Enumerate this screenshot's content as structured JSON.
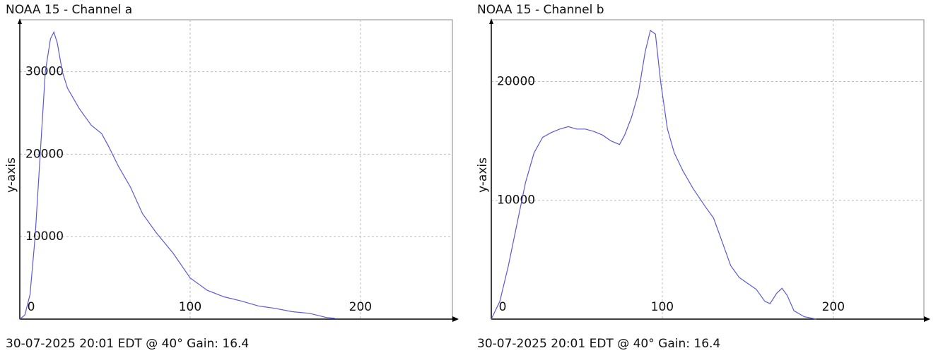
{
  "chart_data": [
    {
      "type": "line",
      "title": "NOAA 15 - Channel a",
      "ylabel": "y-axis",
      "footer": "30-07-2025 20:01 EDT @ 40° Gain: 16.4",
      "xlim": [
        0,
        254
      ],
      "xticks": [
        0,
        100,
        200
      ],
      "ylim": [
        0,
        36300
      ],
      "yticks": [
        10000,
        20000,
        30000
      ],
      "grid": true,
      "series": [
        {
          "color": "#5a5ad6",
          "x": [
            0,
            3,
            6,
            9,
            12,
            15,
            18,
            20,
            22,
            25,
            28,
            35,
            42,
            48,
            52,
            58,
            65,
            72,
            80,
            90,
            100,
            110,
            120,
            130,
            140,
            150,
            160,
            170,
            180,
            185
          ],
          "values": [
            0,
            500,
            3000,
            10000,
            20000,
            30000,
            34000,
            34800,
            33500,
            30000,
            28000,
            25500,
            23500,
            22500,
            21000,
            18500,
            16000,
            12800,
            10500,
            8000,
            5000,
            3500,
            2700,
            2200,
            1600,
            1300,
            900,
            700,
            200,
            100
          ]
        }
      ]
    },
    {
      "type": "line",
      "title": "NOAA 15 - Channel b",
      "ylabel": "y-axis",
      "footer": "30-07-2025 20:01 EDT @ 40° Gain: 16.4",
      "xlim": [
        0,
        253
      ],
      "xticks": [
        0,
        100,
        200
      ],
      "ylim": [
        0,
        25200
      ],
      "yticks": [
        10000,
        20000
      ],
      "grid": true,
      "series": [
        {
          "color": "#5a5ad6",
          "x": [
            0,
            5,
            10,
            15,
            20,
            25,
            30,
            35,
            40,
            45,
            50,
            55,
            60,
            65,
            70,
            75,
            78,
            82,
            86,
            90,
            93,
            96,
            99,
            103,
            107,
            112,
            118,
            125,
            130,
            135,
            140,
            145,
            150,
            155,
            160,
            163,
            167,
            170,
            173,
            177,
            183,
            190
          ],
          "values": [
            0,
            1500,
            4500,
            8000,
            11500,
            14000,
            15300,
            15700,
            16000,
            16200,
            16000,
            16000,
            15800,
            15500,
            15000,
            14700,
            15500,
            17000,
            19000,
            22500,
            24300,
            24000,
            20000,
            16000,
            14000,
            12500,
            11000,
            9500,
            8500,
            6500,
            4500,
            3500,
            3000,
            2500,
            1500,
            1300,
            2200,
            2600,
            2000,
            700,
            200,
            0
          ]
        }
      ]
    }
  ]
}
